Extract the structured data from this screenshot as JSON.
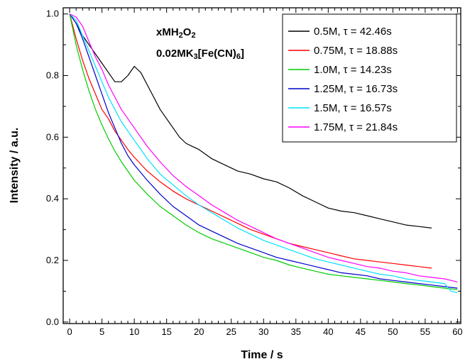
{
  "chart_data": {
    "type": "line",
    "xlabel": "Time / s",
    "ylabel": "Intensity / a.u.",
    "xlim": [
      -1,
      60.5
    ],
    "ylim": [
      -0.005,
      1.02
    ],
    "x_ticks": [
      0,
      5,
      10,
      15,
      20,
      25,
      30,
      35,
      40,
      45,
      50,
      55,
      60
    ],
    "x_minor_step": 1,
    "y_ticks": [
      0.0,
      0.2,
      0.4,
      0.6,
      0.8,
      1.0
    ],
    "y_minor_step": 0.1,
    "grid": false,
    "legend_position": "top-right",
    "annotations": [
      {
        "parts": [
          {
            "t": "xMH"
          },
          {
            "t": "2",
            "sub": true
          },
          {
            "t": "O"
          },
          {
            "t": "2",
            "sub": true
          }
        ]
      },
      {
        "parts": [
          {
            "t": "0.02MK"
          },
          {
            "t": "3",
            "sub": true
          },
          {
            "t": "[Fe(CN)"
          },
          {
            "t": "6",
            "sub": true
          },
          {
            "t": "]"
          }
        ]
      }
    ],
    "series": [
      {
        "name": "0.5M, τ = 42.46s",
        "color": "#000000",
        "x": [
          0,
          1,
          2,
          3,
          4,
          5,
          6,
          7,
          8,
          9,
          10,
          11,
          12,
          13,
          14,
          15,
          16,
          17,
          18,
          19,
          20,
          22,
          24,
          26,
          28,
          30,
          32,
          34,
          36,
          38,
          40,
          42,
          44,
          46,
          48,
          50,
          52,
          54,
          56
        ],
        "y": [
          1.0,
          0.97,
          0.93,
          0.9,
          0.87,
          0.84,
          0.81,
          0.78,
          0.78,
          0.8,
          0.83,
          0.81,
          0.77,
          0.73,
          0.69,
          0.66,
          0.63,
          0.6,
          0.58,
          0.57,
          0.56,
          0.53,
          0.51,
          0.49,
          0.48,
          0.465,
          0.455,
          0.435,
          0.41,
          0.39,
          0.37,
          0.36,
          0.355,
          0.345,
          0.335,
          0.325,
          0.315,
          0.31,
          0.305
        ]
      },
      {
        "name": "0.75M, τ = 18.88s",
        "color": "#ff0000",
        "x": [
          0,
          1,
          2,
          3,
          4,
          5,
          6,
          7,
          8,
          9,
          10,
          12,
          14,
          16,
          18,
          20,
          22,
          24,
          26,
          28,
          30,
          32,
          34,
          36,
          38,
          40,
          42,
          44,
          46,
          48,
          50,
          52,
          54,
          56
        ],
        "y": [
          1.0,
          0.92,
          0.85,
          0.79,
          0.74,
          0.69,
          0.66,
          0.62,
          0.59,
          0.56,
          0.535,
          0.49,
          0.455,
          0.425,
          0.4,
          0.38,
          0.36,
          0.34,
          0.32,
          0.3,
          0.285,
          0.27,
          0.255,
          0.245,
          0.235,
          0.225,
          0.215,
          0.205,
          0.2,
          0.195,
          0.19,
          0.185,
          0.18,
          0.175
        ]
      },
      {
        "name": "1.0M, τ = 14.23s",
        "color": "#00cc00",
        "x": [
          0,
          1,
          2,
          3,
          4,
          5,
          6,
          7,
          8,
          9,
          10,
          12,
          14,
          16,
          18,
          20,
          22,
          24,
          26,
          28,
          30,
          32,
          34,
          36,
          38,
          40,
          42,
          44,
          46,
          48,
          50,
          52,
          54,
          56,
          58,
          60
        ],
        "y": [
          1.0,
          0.9,
          0.82,
          0.75,
          0.69,
          0.64,
          0.595,
          0.555,
          0.52,
          0.49,
          0.46,
          0.415,
          0.375,
          0.345,
          0.315,
          0.29,
          0.27,
          0.255,
          0.24,
          0.225,
          0.21,
          0.2,
          0.185,
          0.175,
          0.165,
          0.155,
          0.15,
          0.145,
          0.14,
          0.135,
          0.13,
          0.125,
          0.12,
          0.115,
          0.11,
          0.105
        ]
      },
      {
        "name": "1.25M, τ = 16.73s",
        "color": "#0000cc",
        "x": [
          0,
          1,
          2,
          3,
          4,
          5,
          6,
          7,
          8,
          9,
          10,
          12,
          14,
          16,
          18,
          20,
          22,
          24,
          26,
          28,
          30,
          32,
          34,
          36,
          38,
          40,
          42,
          44,
          46,
          48,
          50,
          52,
          54,
          56,
          58,
          60
        ],
        "y": [
          1.0,
          0.97,
          0.92,
          0.86,
          0.8,
          0.74,
          0.68,
          0.63,
          0.58,
          0.54,
          0.51,
          0.46,
          0.415,
          0.375,
          0.345,
          0.315,
          0.295,
          0.275,
          0.255,
          0.24,
          0.225,
          0.21,
          0.2,
          0.19,
          0.18,
          0.17,
          0.16,
          0.155,
          0.15,
          0.14,
          0.135,
          0.13,
          0.125,
          0.12,
          0.115,
          0.11
        ]
      },
      {
        "name": "1.5M, τ = 16.57s",
        "color": "#00e0ff",
        "x": [
          0,
          1,
          2,
          3,
          4,
          5,
          6,
          7,
          8,
          9,
          10,
          12,
          14,
          16,
          18,
          20,
          22,
          24,
          26,
          28,
          30,
          32,
          34,
          36,
          38,
          40,
          42,
          44,
          46,
          48,
          50,
          52,
          54,
          56,
          58,
          59,
          60
        ],
        "y": [
          1.0,
          0.98,
          0.93,
          0.88,
          0.83,
          0.78,
          0.73,
          0.69,
          0.65,
          0.62,
          0.59,
          0.53,
          0.48,
          0.445,
          0.41,
          0.38,
          0.355,
          0.33,
          0.305,
          0.285,
          0.265,
          0.25,
          0.235,
          0.22,
          0.205,
          0.195,
          0.185,
          0.175,
          0.165,
          0.155,
          0.15,
          0.14,
          0.135,
          0.13,
          0.125,
          0.1,
          0.095
        ]
      },
      {
        "name": "1.75M, τ = 21.84s",
        "color": "#ff00ff",
        "x": [
          0,
          1,
          2,
          3,
          4,
          5,
          6,
          7,
          8,
          9,
          10,
          12,
          14,
          16,
          18,
          20,
          22,
          24,
          26,
          28,
          30,
          32,
          34,
          36,
          38,
          40,
          42,
          44,
          46,
          48,
          50,
          52,
          54,
          56,
          58,
          60
        ],
        "y": [
          1.0,
          0.99,
          0.96,
          0.91,
          0.86,
          0.82,
          0.77,
          0.73,
          0.69,
          0.66,
          0.63,
          0.57,
          0.52,
          0.475,
          0.44,
          0.41,
          0.38,
          0.355,
          0.33,
          0.31,
          0.29,
          0.27,
          0.255,
          0.24,
          0.225,
          0.21,
          0.2,
          0.19,
          0.18,
          0.175,
          0.165,
          0.16,
          0.15,
          0.145,
          0.14,
          0.13
        ]
      }
    ]
  }
}
